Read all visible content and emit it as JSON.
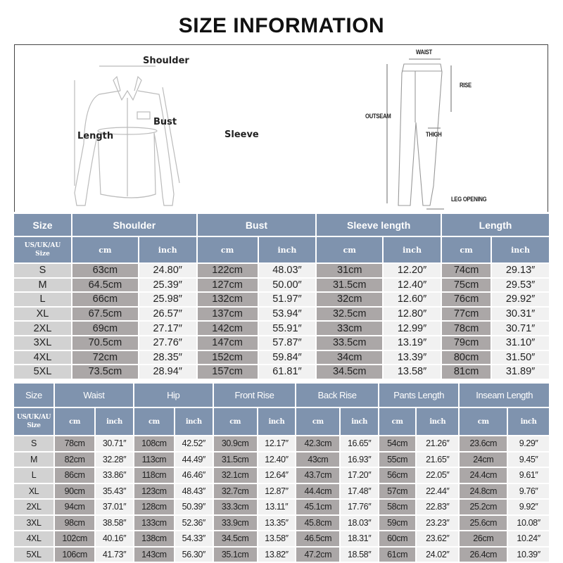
{
  "title": "SIZE INFORMATION",
  "diagram": {
    "shirt_labels": {
      "shoulder": "Shoulder",
      "bust": "Bust",
      "length": "Length",
      "sleeve": "Sleeve"
    },
    "pants_labels": {
      "waist": "WAIST",
      "rise": "RISE",
      "outseam": "OUTSEAM",
      "thigh": "THIGH",
      "leg_opening": "LEG OPENING"
    }
  },
  "colors": {
    "header": "#7f93ae",
    "size_cell": "#d2d2d2",
    "cm_cell": "#aba7a7",
    "inch_cell": "#f1f1f1"
  },
  "top_table": {
    "size_header": "Size",
    "size_sub_header": [
      "US/UK/AU",
      "Size"
    ],
    "groups": [
      "Shoulder",
      "Bust",
      "Sleeve length",
      "Length"
    ],
    "units": [
      "cm",
      "inch"
    ],
    "rows": [
      {
        "size": "S",
        "values": [
          "63cm",
          "24.80″",
          "122cm",
          "48.03″",
          "31cm",
          "12.20″",
          "74cm",
          "29.13″"
        ]
      },
      {
        "size": "M",
        "values": [
          "64.5cm",
          "25.39″",
          "127cm",
          "50.00″",
          "31.5cm",
          "12.40″",
          "75cm",
          "29.53″"
        ]
      },
      {
        "size": "L",
        "values": [
          "66cm",
          "25.98″",
          "132cm",
          "51.97″",
          "32cm",
          "12.60″",
          "76cm",
          "29.92″"
        ]
      },
      {
        "size": "XL",
        "values": [
          "67.5cm",
          "26.57″",
          "137cm",
          "53.94″",
          "32.5cm",
          "12.80″",
          "77cm",
          "30.31″"
        ]
      },
      {
        "size": "2XL",
        "values": [
          "69cm",
          "27.17″",
          "142cm",
          "55.91″",
          "33cm",
          "12.99″",
          "78cm",
          "30.71″"
        ]
      },
      {
        "size": "3XL",
        "values": [
          "70.5cm",
          "27.76″",
          "147cm",
          "57.87″",
          "33.5cm",
          "13.19″",
          "79cm",
          "31.10″"
        ]
      },
      {
        "size": "4XL",
        "values": [
          "72cm",
          "28.35″",
          "152cm",
          "59.84″",
          "34cm",
          "13.39″",
          "80cm",
          "31.50″"
        ]
      },
      {
        "size": "5XL",
        "values": [
          "73.5cm",
          "28.94″",
          "157cm",
          "61.81″",
          "34.5cm",
          "13.58″",
          "81cm",
          "31.89″"
        ]
      }
    ]
  },
  "bottom_table": {
    "size_header": "Size",
    "size_sub_header": [
      "US/UK/AU",
      "Size"
    ],
    "groups": [
      "Waist",
      "Hip",
      "Front Rise",
      "Back Rise",
      "Pants Length",
      "Inseam Length"
    ],
    "units": [
      "cm",
      "inch"
    ],
    "rows": [
      {
        "size": "S",
        "values": [
          "78cm",
          "30.71″",
          "108cm",
          "42.52″",
          "30.9cm",
          "12.17″",
          "42.3cm",
          "16.65″",
          "54cm",
          "21.26″",
          "23.6cm",
          "9.29″"
        ]
      },
      {
        "size": "M",
        "values": [
          "82cm",
          "32.28″",
          "113cm",
          "44.49″",
          "31.5cm",
          "12.40″",
          "43cm",
          "16.93″",
          "55cm",
          "21.65″",
          "24cm",
          "9.45″"
        ]
      },
      {
        "size": "L",
        "values": [
          "86cm",
          "33.86″",
          "118cm",
          "46.46″",
          "32.1cm",
          "12.64″",
          "43.7cm",
          "17.20″",
          "56cm",
          "22.05″",
          "24.4cm",
          "9.61″"
        ]
      },
      {
        "size": "XL",
        "values": [
          "90cm",
          "35.43″",
          "123cm",
          "48.43″",
          "32.7cm",
          "12.87″",
          "44.4cm",
          "17.48″",
          "57cm",
          "22.44″",
          "24.8cm",
          "9.76″"
        ]
      },
      {
        "size": "2XL",
        "values": [
          "94cm",
          "37.01″",
          "128cm",
          "50.39″",
          "33.3cm",
          "13.11″",
          "45.1cm",
          "17.76″",
          "58cm",
          "22.83″",
          "25.2cm",
          "9.92″"
        ]
      },
      {
        "size": "3XL",
        "values": [
          "98cm",
          "38.58″",
          "133cm",
          "52.36″",
          "33.9cm",
          "13.35″",
          "45.8cm",
          "18.03″",
          "59cm",
          "23.23″",
          "25.6cm",
          "10.08″"
        ]
      },
      {
        "size": "4XL",
        "values": [
          "102cm",
          "40.16″",
          "138cm",
          "54.33″",
          "34.5cm",
          "13.58″",
          "46.5cm",
          "18.31″",
          "60cm",
          "23.62″",
          "26cm",
          "10.24″"
        ]
      },
      {
        "size": "5XL",
        "values": [
          "106cm",
          "41.73″",
          "143cm",
          "56.30″",
          "35.1cm",
          "13.82″",
          "47.2cm",
          "18.58″",
          "61cm",
          "24.02″",
          "26.4cm",
          "10.39″"
        ]
      }
    ]
  }
}
